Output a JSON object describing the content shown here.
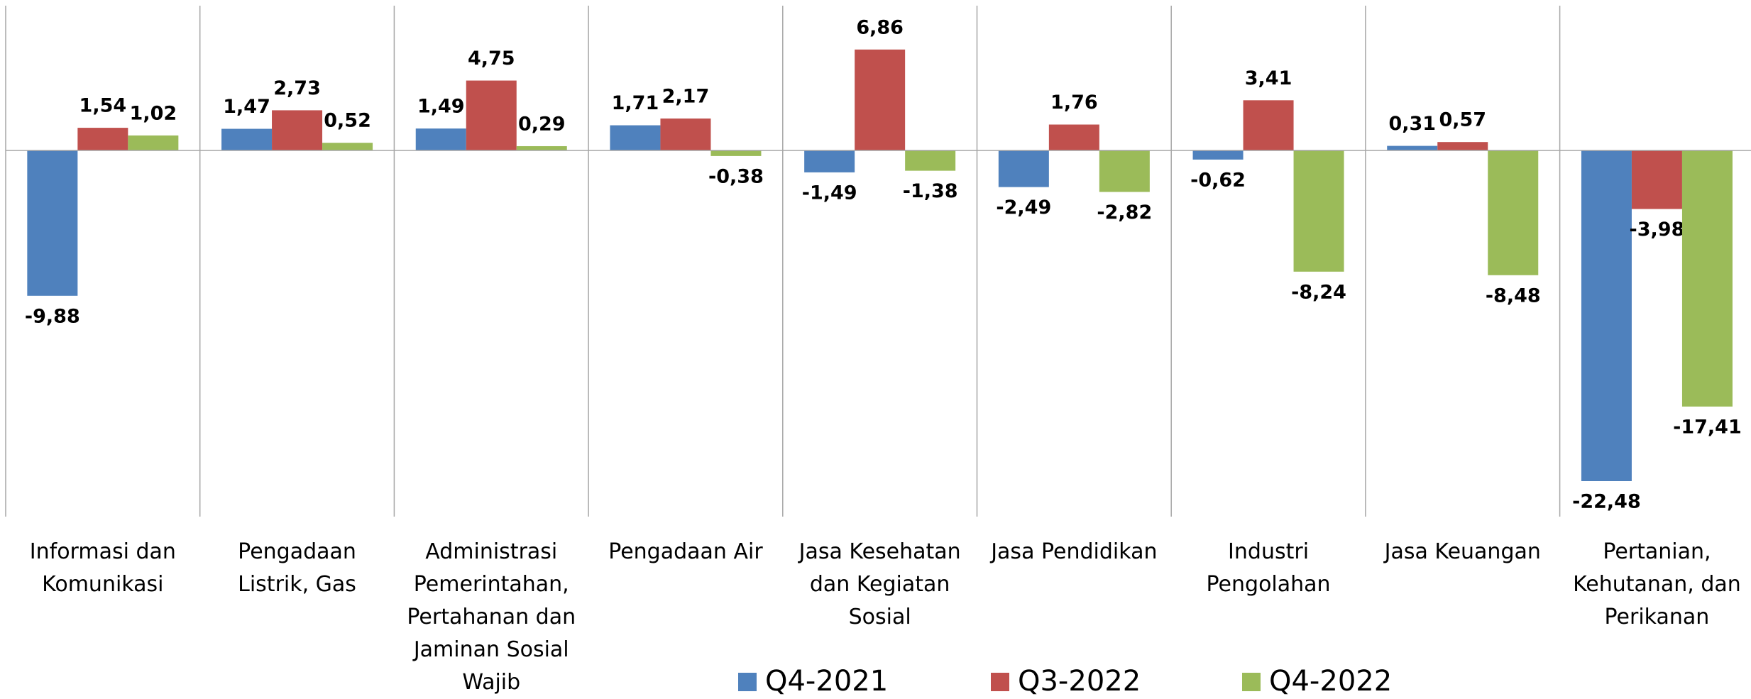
{
  "chart_data": {
    "type": "bar",
    "categories": [
      "Informasi dan Komunikasi",
      "Pengadaan Listrik, Gas",
      "Administrasi Pemerintahan, Pertahanan dan Jaminan Sosial Wajib",
      "Pengadaan Air",
      "Jasa Kesehatan dan Kegiatan Sosial",
      "Jasa Pendidikan",
      "Industri Pengolahan",
      "Jasa Keuangan",
      "Pertanian, Kehutanan, dan Perikanan"
    ],
    "series": [
      {
        "name": "Q4-2021",
        "color": "#4f81bd",
        "values": [
          -9.88,
          1.47,
          1.49,
          1.71,
          -1.49,
          -2.49,
          -0.62,
          0.31,
          -22.48
        ],
        "value_labels": [
          "-9,88",
          "1,47",
          "1,49",
          "1,71",
          "-1,49",
          "-2,49",
          "-0,62",
          "0,31",
          "-22,48"
        ]
      },
      {
        "name": "Q3-2022",
        "color": "#c0504d",
        "values": [
          1.54,
          2.73,
          4.75,
          2.17,
          6.86,
          1.76,
          3.41,
          0.57,
          -3.98
        ],
        "value_labels": [
          "1,54",
          "2,73",
          "4,75",
          "2,17",
          "6,86",
          "1,76",
          "3,41",
          "0,57",
          "-3,98"
        ]
      },
      {
        "name": "Q4-2022",
        "color": "#9bbb59",
        "values": [
          1.02,
          0.52,
          0.29,
          -0.38,
          -1.38,
          -2.82,
          -8.24,
          -8.48,
          -17.41
        ],
        "value_labels": [
          "1,02",
          "0,52",
          "0,29",
          "-0,38",
          "-1,38",
          "-2,82",
          "-8,24",
          "-8,48",
          "-17,41"
        ]
      }
    ]
  }
}
